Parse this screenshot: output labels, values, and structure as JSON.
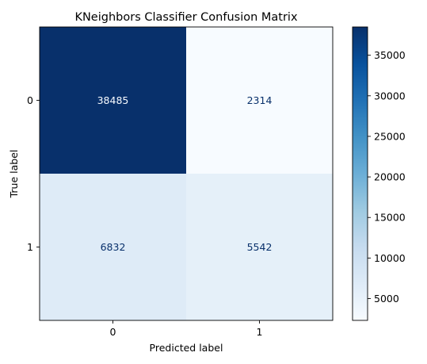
{
  "chart_data": {
    "type": "heatmap",
    "title": "KNeighbors Classifier Confusion Matrix",
    "xlabel": "Predicted label",
    "ylabel": "True label",
    "x_categories": [
      "0",
      "1"
    ],
    "y_categories": [
      "0",
      "1"
    ],
    "values": [
      [
        38485,
        2314
      ],
      [
        6832,
        5542
      ]
    ],
    "colormap": "Blues",
    "color_range": [
      2314,
      38485
    ],
    "colorbar_ticks": [
      5000,
      10000,
      15000,
      20000,
      25000,
      30000,
      35000
    ],
    "colorbar_tick_labels": [
      "5000",
      "10000",
      "15000",
      "20000",
      "25000",
      "30000",
      "35000"
    ]
  }
}
